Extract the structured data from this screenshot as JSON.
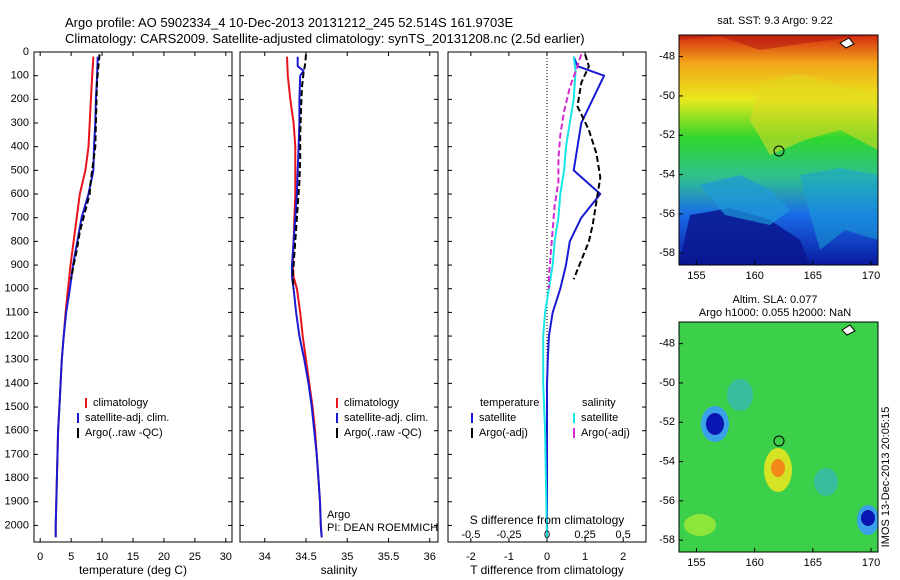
{
  "header": {
    "line1": "Argo profile: AO 5902334_4 10-Dec-2013 20131212_245 52.514S 161.9703E",
    "line2": "Climatology: CARS2009. Satellite-adjusted climatology: synTS_20131208.nc (2.5d earlier)"
  },
  "colors": {
    "climatology": "#e8141c",
    "satellite": "#1a1ad2",
    "argo": "#000000",
    "sat_salinity": "#19e6e6",
    "argo_salinity": "#d42ad4"
  },
  "chart_data": [
    {
      "type": "line",
      "xlabel": "temperature (deg C)",
      "ylabel": "",
      "xlim": [
        -1,
        31
      ],
      "ylim": [
        2070,
        0
      ],
      "xticks": [
        0,
        5,
        10,
        15,
        20,
        25,
        30
      ],
      "yticks": [
        0,
        100,
        200,
        300,
        400,
        500,
        600,
        700,
        800,
        900,
        1000,
        1100,
        1200,
        1300,
        1400,
        1500,
        1600,
        1700,
        1800,
        1900,
        2000
      ],
      "legend": [
        "climatology",
        "satellite-adj. clim.",
        "Argo(..raw -QC)"
      ],
      "series": [
        {
          "name": "climatology",
          "color": "#e8141c",
          "dash": false,
          "points": [
            [
              8.6,
              20
            ],
            [
              8.4,
              100
            ],
            [
              8.2,
              200
            ],
            [
              8.0,
              300
            ],
            [
              7.8,
              400
            ],
            [
              7.3,
              500
            ],
            [
              6.4,
              600
            ],
            [
              5.9,
              700
            ],
            [
              5.4,
              800
            ],
            [
              4.9,
              900
            ],
            [
              4.5,
              1000
            ],
            [
              4.1,
              1100
            ],
            [
              3.8,
              1200
            ],
            [
              3.5,
              1300
            ],
            [
              3.3,
              1400
            ],
            [
              3.1,
              1500
            ],
            [
              2.9,
              1600
            ],
            [
              2.8,
              1700
            ],
            [
              2.7,
              1800
            ],
            [
              2.6,
              1900
            ],
            [
              2.5,
              2000
            ],
            [
              2.5,
              2050
            ]
          ]
        },
        {
          "name": "satellite-adj. clim.",
          "color": "#1a1ad2",
          "dash": false,
          "points": [
            [
              9.3,
              20
            ],
            [
              9.2,
              100
            ],
            [
              9.0,
              200
            ],
            [
              8.9,
              300
            ],
            [
              8.7,
              400
            ],
            [
              8.6,
              500
            ],
            [
              7.8,
              600
            ],
            [
              6.7,
              700
            ],
            [
              6.0,
              800
            ],
            [
              5.3,
              900
            ],
            [
              4.8,
              1000
            ],
            [
              4.2,
              1100
            ],
            [
              3.8,
              1200
            ],
            [
              3.5,
              1300
            ],
            [
              3.3,
              1400
            ],
            [
              3.1,
              1500
            ],
            [
              2.9,
              1600
            ],
            [
              2.8,
              1700
            ],
            [
              2.7,
              1800
            ],
            [
              2.6,
              1900
            ],
            [
              2.5,
              2000
            ],
            [
              2.5,
              2050
            ]
          ]
        },
        {
          "name": "Argo(..raw -QC)",
          "color": "#000000",
          "dash": true,
          "points": [
            [
              9.6,
              10
            ],
            [
              9.4,
              60
            ],
            [
              9.2,
              120
            ],
            [
              9.1,
              200
            ],
            [
              9.0,
              300
            ],
            [
              8.9,
              400
            ],
            [
              8.5,
              480
            ],
            [
              8.1,
              560
            ],
            [
              8.0,
              600
            ],
            [
              7.2,
              680
            ],
            [
              6.4,
              760
            ],
            [
              5.9,
              840
            ],
            [
              5.4,
              900
            ],
            [
              5.0,
              960
            ]
          ]
        }
      ]
    },
    {
      "type": "line",
      "xlabel": "salinity",
      "ylabel": "",
      "xlim": [
        33.7,
        36.1
      ],
      "ylim": [
        2070,
        0
      ],
      "xticks": [
        34,
        34.5,
        35,
        35.5,
        36
      ],
      "legend": [
        "climatology",
        "satellite-adj. clim.",
        "Argo(..raw -QC)"
      ],
      "annotation": [
        "Argo",
        "PI: DEAN ROEMMICH"
      ],
      "series": [
        {
          "name": "climatology",
          "color": "#e8141c",
          "dash": false,
          "points": [
            [
              34.27,
              20
            ],
            [
              34.28,
              100
            ],
            [
              34.31,
              200
            ],
            [
              34.35,
              300
            ],
            [
              34.37,
              400
            ],
            [
              34.37,
              500
            ],
            [
              34.37,
              600
            ],
            [
              34.36,
              700
            ],
            [
              34.35,
              800
            ],
            [
              34.34,
              900
            ],
            [
              34.35,
              950
            ],
            [
              34.39,
              1000
            ],
            [
              34.43,
              1100
            ],
            [
              34.46,
              1200
            ],
            [
              34.5,
              1300
            ],
            [
              34.54,
              1400
            ],
            [
              34.58,
              1500
            ],
            [
              34.61,
              1600
            ],
            [
              34.63,
              1700
            ],
            [
              34.65,
              1800
            ],
            [
              34.67,
              1900
            ],
            [
              34.68,
              2000
            ],
            [
              34.69,
              2050
            ]
          ]
        },
        {
          "name": "satellite-adj. clim.",
          "color": "#1a1ad2",
          "dash": false,
          "points": [
            [
              34.4,
              20
            ],
            [
              34.4,
              60
            ],
            [
              34.47,
              80
            ],
            [
              34.43,
              100
            ],
            [
              34.42,
              200
            ],
            [
              34.42,
              300
            ],
            [
              34.41,
              400
            ],
            [
              34.4,
              500
            ],
            [
              34.39,
              600
            ],
            [
              34.37,
              700
            ],
            [
              34.35,
              800
            ],
            [
              34.33,
              900
            ],
            [
              34.33,
              950
            ],
            [
              34.35,
              1000
            ],
            [
              34.38,
              1100
            ],
            [
              34.42,
              1200
            ],
            [
              34.48,
              1300
            ],
            [
              34.53,
              1400
            ],
            [
              34.57,
              1500
            ],
            [
              34.6,
              1600
            ],
            [
              34.63,
              1700
            ],
            [
              34.65,
              1800
            ],
            [
              34.67,
              1900
            ],
            [
              34.68,
              2000
            ],
            [
              34.69,
              2050
            ]
          ]
        },
        {
          "name": "Argo(..raw -QC)",
          "color": "#000000",
          "dash": true,
          "points": [
            [
              34.5,
              10
            ],
            [
              34.49,
              50
            ],
            [
              34.47,
              90
            ],
            [
              34.45,
              150
            ],
            [
              34.44,
              250
            ],
            [
              34.43,
              350
            ],
            [
              34.43,
              450
            ],
            [
              34.42,
              550
            ],
            [
              34.4,
              650
            ],
            [
              34.38,
              750
            ],
            [
              34.36,
              850
            ],
            [
              34.34,
              950
            ],
            [
              34.35,
              1000
            ]
          ]
        }
      ]
    },
    {
      "type": "line",
      "xlabel": "T difference from climatology",
      "xlabel_top": "S difference from climatology",
      "xlim": [
        -2.6,
        2.6
      ],
      "ylim": [
        2070,
        0
      ],
      "xticks": [
        -2,
        -1,
        0,
        1,
        2
      ],
      "xticks_secondary": [
        "-0.5",
        "-0.25",
        "0",
        "0.25",
        "0.5"
      ],
      "legend_temperature_title": "temperature",
      "legend_salinity_title": "salinity",
      "legend": [
        "satellite",
        "Argo(-adj)",
        "satellite",
        "Argo(-adj)"
      ],
      "series": [
        {
          "name": "temperature satellite",
          "color": "#1a1ad2",
          "dash": false,
          "points": [
            [
              0.7,
              20
            ],
            [
              0.8,
              60
            ],
            [
              1.5,
              100
            ],
            [
              1.2,
              200
            ],
            [
              0.9,
              300
            ],
            [
              0.8,
              400
            ],
            [
              0.7,
              500
            ],
            [
              1.4,
              600
            ],
            [
              0.9,
              700
            ],
            [
              0.6,
              800
            ],
            [
              0.5,
              900
            ],
            [
              0.35,
              1000
            ],
            [
              0.15,
              1100
            ],
            [
              0.05,
              1200
            ],
            [
              0.02,
              1300
            ],
            [
              0,
              1400
            ],
            [
              0,
              1600
            ],
            [
              0,
              2050
            ]
          ]
        },
        {
          "name": "temperature Argo(-adj)",
          "color": "#000000",
          "dash": true,
          "points": [
            [
              1.0,
              10
            ],
            [
              1.1,
              60
            ],
            [
              0.9,
              130
            ],
            [
              0.8,
              230
            ],
            [
              1.1,
              330
            ],
            [
              1.3,
              430
            ],
            [
              1.4,
              530
            ],
            [
              1.3,
              630
            ],
            [
              1.2,
              730
            ],
            [
              1.1,
              800
            ],
            [
              0.9,
              880
            ],
            [
              0.7,
              960
            ]
          ]
        },
        {
          "name": "salinity satellite",
          "color": "#19e6e6",
          "dash": false,
          "points": [
            [
              0.7,
              20
            ],
            [
              0.75,
              80
            ],
            [
              0.7,
              200
            ],
            [
              0.6,
              300
            ],
            [
              0.5,
              400
            ],
            [
              0.45,
              500
            ],
            [
              0.35,
              600
            ],
            [
              0.3,
              700
            ],
            [
              0.2,
              800
            ],
            [
              0.15,
              900
            ],
            [
              0.05,
              1000
            ],
            [
              -0.05,
              1100
            ],
            [
              -0.1,
              1200
            ],
            [
              -0.1,
              1400
            ],
            [
              -0.05,
              1600
            ],
            [
              -0.03,
              1800
            ],
            [
              0,
              2050
            ]
          ]
        },
        {
          "name": "salinity Argo(-adj)",
          "color": "#d42ad4",
          "dash": true,
          "points": [
            [
              0.9,
              10
            ],
            [
              0.8,
              60
            ],
            [
              0.6,
              150
            ],
            [
              0.45,
              250
            ],
            [
              0.35,
              350
            ],
            [
              0.3,
              450
            ],
            [
              0.3,
              550
            ],
            [
              0.2,
              650
            ],
            [
              0.15,
              750
            ],
            [
              0.1,
              850
            ],
            [
              0.05,
              950
            ],
            [
              0.05,
              1000
            ]
          ]
        }
      ]
    }
  ],
  "maps": {
    "sst": {
      "title": "sat. SST: 9.3 Argo: 9.22",
      "xticks": [
        "155",
        "160",
        "165",
        "170"
      ],
      "yticks": [
        "-48",
        "-50",
        "-52",
        "-54",
        "-56",
        "-58"
      ]
    },
    "sla": {
      "title1": "Altim. SLA: 0.077",
      "title2": "Argo h1000: 0.055 h2000: NaN",
      "xticks": [
        "155",
        "160",
        "165",
        "170"
      ],
      "yticks": [
        "-48",
        "-50",
        "-52",
        "-54",
        "-56",
        "-58"
      ]
    }
  },
  "footer": {
    "imos_stamp": "IMOS 13-Dec-2013 20:05:15"
  }
}
